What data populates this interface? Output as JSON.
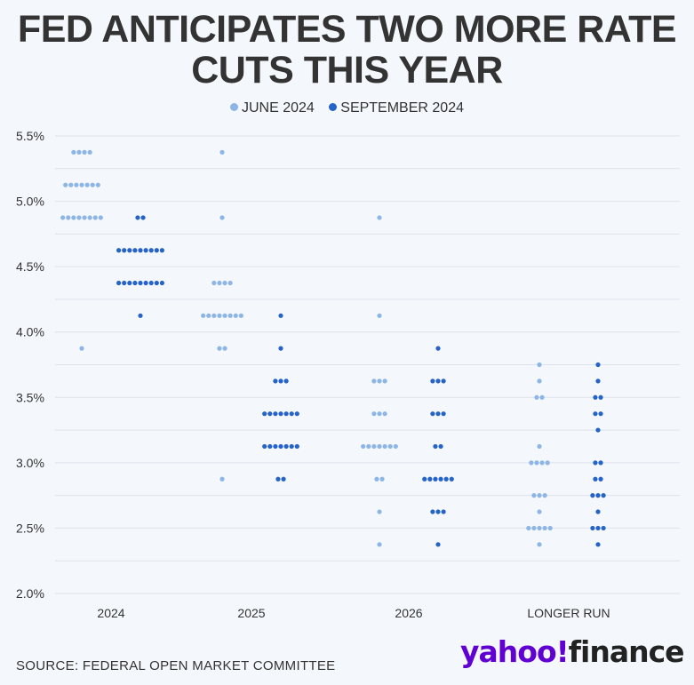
{
  "header": {
    "title_line1": "FED ANTICIPATES TWO MORE RATE",
    "title_line2": "CUTS THIS YEAR"
  },
  "footer": {
    "source": "SOURCE: FEDERAL OPEN MARKET COMMITTEE"
  },
  "logo": {
    "brand": "yahoo!",
    "product": "finance"
  },
  "chart_data": {
    "type": "scatter",
    "title": "FED ANTICIPATES TWO MORE RATE CUTS THIS YEAR",
    "legend_position": "top-center",
    "grid": true,
    "ylim": [
      2.0,
      5.5
    ],
    "y_ticks": [
      "2.0%",
      "2.5%",
      "3.0%",
      "3.5%",
      "4.0%",
      "4.5%",
      "5.0%",
      "5.5%"
    ],
    "categories": [
      "2024",
      "2025",
      "2026",
      "LONGER RUN"
    ],
    "series": [
      {
        "name": "JUNE 2024",
        "color": "#8db6e6",
        "points": [
          [
            [
              5.375,
              4
            ],
            [
              5.125,
              7
            ],
            [
              4.875,
              8
            ],
            [
              3.875,
              1
            ]
          ],
          [
            [
              5.375,
              1
            ],
            [
              4.875,
              1
            ],
            [
              4.375,
              4
            ],
            [
              4.125,
              8
            ],
            [
              3.875,
              2
            ],
            [
              2.875,
              1
            ]
          ],
          [
            [
              4.875,
              1
            ],
            [
              4.125,
              1
            ],
            [
              3.625,
              3
            ],
            [
              3.375,
              3
            ],
            [
              3.125,
              7
            ],
            [
              2.875,
              2
            ],
            [
              2.625,
              1
            ],
            [
              2.375,
              1
            ]
          ],
          [
            [
              3.75,
              1
            ],
            [
              3.625,
              1
            ],
            [
              3.5,
              2
            ],
            [
              3.125,
              1
            ],
            [
              3.0,
              4
            ],
            [
              2.75,
              3
            ],
            [
              2.625,
              1
            ],
            [
              2.5,
              5
            ],
            [
              2.375,
              1
            ]
          ]
        ]
      },
      {
        "name": "SEPTEMBER 2024",
        "color": "#2563c7",
        "points": [
          [
            [
              4.875,
              2
            ],
            [
              4.625,
              9
            ],
            [
              4.375,
              9
            ],
            [
              4.125,
              1
            ]
          ],
          [
            [
              4.125,
              1
            ],
            [
              3.875,
              1
            ],
            [
              3.625,
              3
            ],
            [
              3.375,
              7
            ],
            [
              3.125,
              7
            ],
            [
              2.875,
              2
            ]
          ],
          [
            [
              3.875,
              1
            ],
            [
              3.625,
              3
            ],
            [
              3.375,
              3
            ],
            [
              3.125,
              2
            ],
            [
              2.875,
              6
            ],
            [
              2.625,
              3
            ],
            [
              2.375,
              1
            ]
          ],
          [
            [
              3.75,
              1
            ],
            [
              3.625,
              1
            ],
            [
              3.5,
              2
            ],
            [
              3.375,
              2
            ],
            [
              3.25,
              1
            ],
            [
              3.0,
              2
            ],
            [
              2.875,
              2
            ],
            [
              2.75,
              3
            ],
            [
              2.625,
              1
            ],
            [
              2.5,
              3
            ],
            [
              2.375,
              1
            ]
          ]
        ]
      }
    ]
  }
}
